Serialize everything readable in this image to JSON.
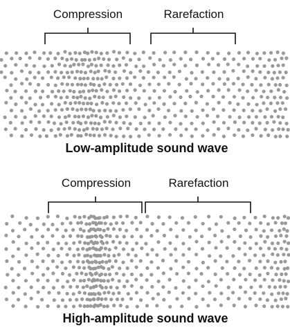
{
  "panels": [
    {
      "compression": "Compression",
      "rarefaction": "Rarefaction",
      "caption": "Low-amplitude sound wave"
    },
    {
      "compression": "Compression",
      "rarefaction": "Rarefaction",
      "caption": "High-amplitude sound wave"
    }
  ]
}
